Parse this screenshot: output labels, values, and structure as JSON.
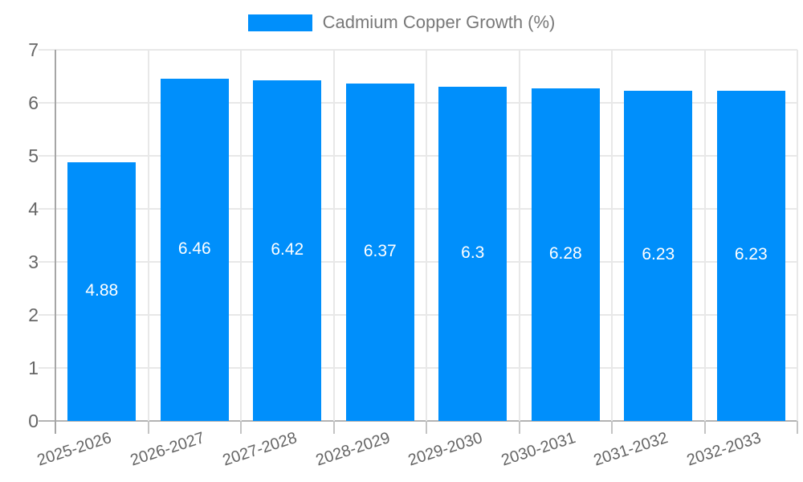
{
  "chart_data": {
    "type": "bar",
    "title": "Cadmium Copper Growth (%)",
    "categories": [
      "2025-2026",
      "2026-2027",
      "2027-2028",
      "2028-2029",
      "2029-2030",
      "2030-2031",
      "2031-2032",
      "2032-2033"
    ],
    "series": [
      {
        "name": "Cadmium Copper Growth (%)",
        "values": [
          4.88,
          6.46,
          6.42,
          6.37,
          6.3,
          6.28,
          6.23,
          6.23
        ]
      }
    ],
    "data_labels": [
      "4.88",
      "6.46",
      "6.42",
      "6.37",
      "6.3",
      "6.28",
      "6.23",
      "6.23"
    ],
    "xlabel": "",
    "ylabel": "",
    "ylim": [
      0,
      7
    ],
    "y_ticks": [
      0,
      1,
      2,
      3,
      4,
      5,
      6,
      7
    ],
    "grid": true,
    "legend_position": "top",
    "colors": {
      "bar": "#008FFB",
      "bar_label": "#ffffff",
      "axis_text": "#666666",
      "legend_text": "#787878",
      "gridline": "#e8e8e8",
      "axis_line": "#a6a6a6"
    }
  }
}
